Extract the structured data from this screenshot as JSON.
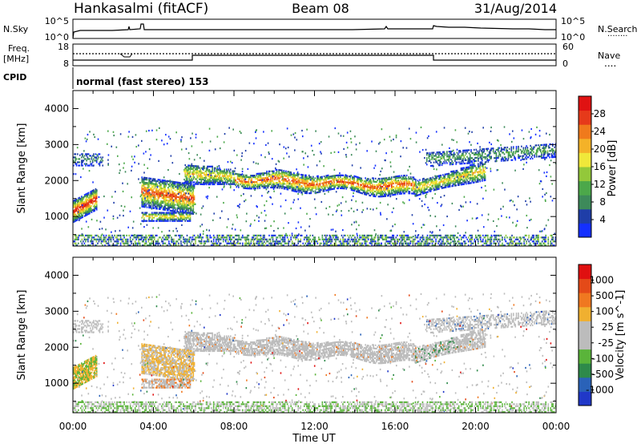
{
  "header": {
    "station": "Hankasalmi (fitACF)",
    "beam": "Beam 08",
    "date": "31/Aug/2014"
  },
  "noise_panel": {
    "left_label": "N.Sky",
    "left_ticks": [
      "10^5",
      "10^0"
    ],
    "right_ticks": [
      "10^5",
      "10^0"
    ],
    "right_label": "N.Search",
    "right_line": "........"
  },
  "freq_panel": {
    "left_label_1": "Freq.",
    "left_label_2": "[MHz]",
    "left_ticks": [
      "18",
      "8"
    ],
    "right_ticks": [
      "60",
      "0"
    ],
    "right_label": "Nave",
    "right_line": "...."
  },
  "cpid": {
    "label": "CPID",
    "value": "normal (fast stereo) 153"
  },
  "colors": {
    "power_scale": [
      "#1430ff",
      "#1f3ea8",
      "#3d8a5a",
      "#4ca84a",
      "#93c83a",
      "#f0e83a",
      "#f4b228",
      "#f07a1c",
      "#e63a1a",
      "#e01212"
    ],
    "velocity_scale": [
      "#2038c8",
      "#2a62b8",
      "#2e8a4a",
      "#5ab43a",
      "#bcbcbc",
      "#bcbcbc",
      "#f0b030",
      "#f07820",
      "#e44a18",
      "#e01010"
    ]
  },
  "chart_data": [
    {
      "type": "heatmap",
      "title": "Power",
      "xlabel": "Time UT",
      "ylabel": "Slant Range [km]",
      "xlim": [
        "00:00",
        "24:00"
      ],
      "ylim": [
        180,
        4500
      ],
      "x_ticks": [
        "00:00",
        "04:00",
        "08:00",
        "12:00",
        "16:00",
        "20:00",
        "00:00"
      ],
      "y_ticks": [
        1000,
        2000,
        3000,
        4000
      ],
      "colorbar": {
        "label": "Power [dB]",
        "range": [
          0,
          32
        ],
        "ticks": [
          "28",
          "24",
          "20",
          "16",
          "12",
          "8",
          "4"
        ]
      }
    },
    {
      "type": "heatmap",
      "title": "Velocity",
      "xlabel": "Time UT",
      "ylabel": "Slant Range [km]",
      "xlim": [
        "00:00",
        "24:00"
      ],
      "ylim": [
        180,
        4500
      ],
      "x_ticks": [
        "00:00",
        "04:00",
        "08:00",
        "12:00",
        "16:00",
        "20:00",
        "00:00"
      ],
      "y_ticks": [
        1000,
        2000,
        3000,
        4000
      ],
      "colorbar": {
        "label": "Velocity [m s^-1]",
        "ticks": [
          "1000",
          "500",
          "100",
          "25",
          "-25",
          "-100",
          "-500",
          "-1000"
        ]
      }
    }
  ]
}
